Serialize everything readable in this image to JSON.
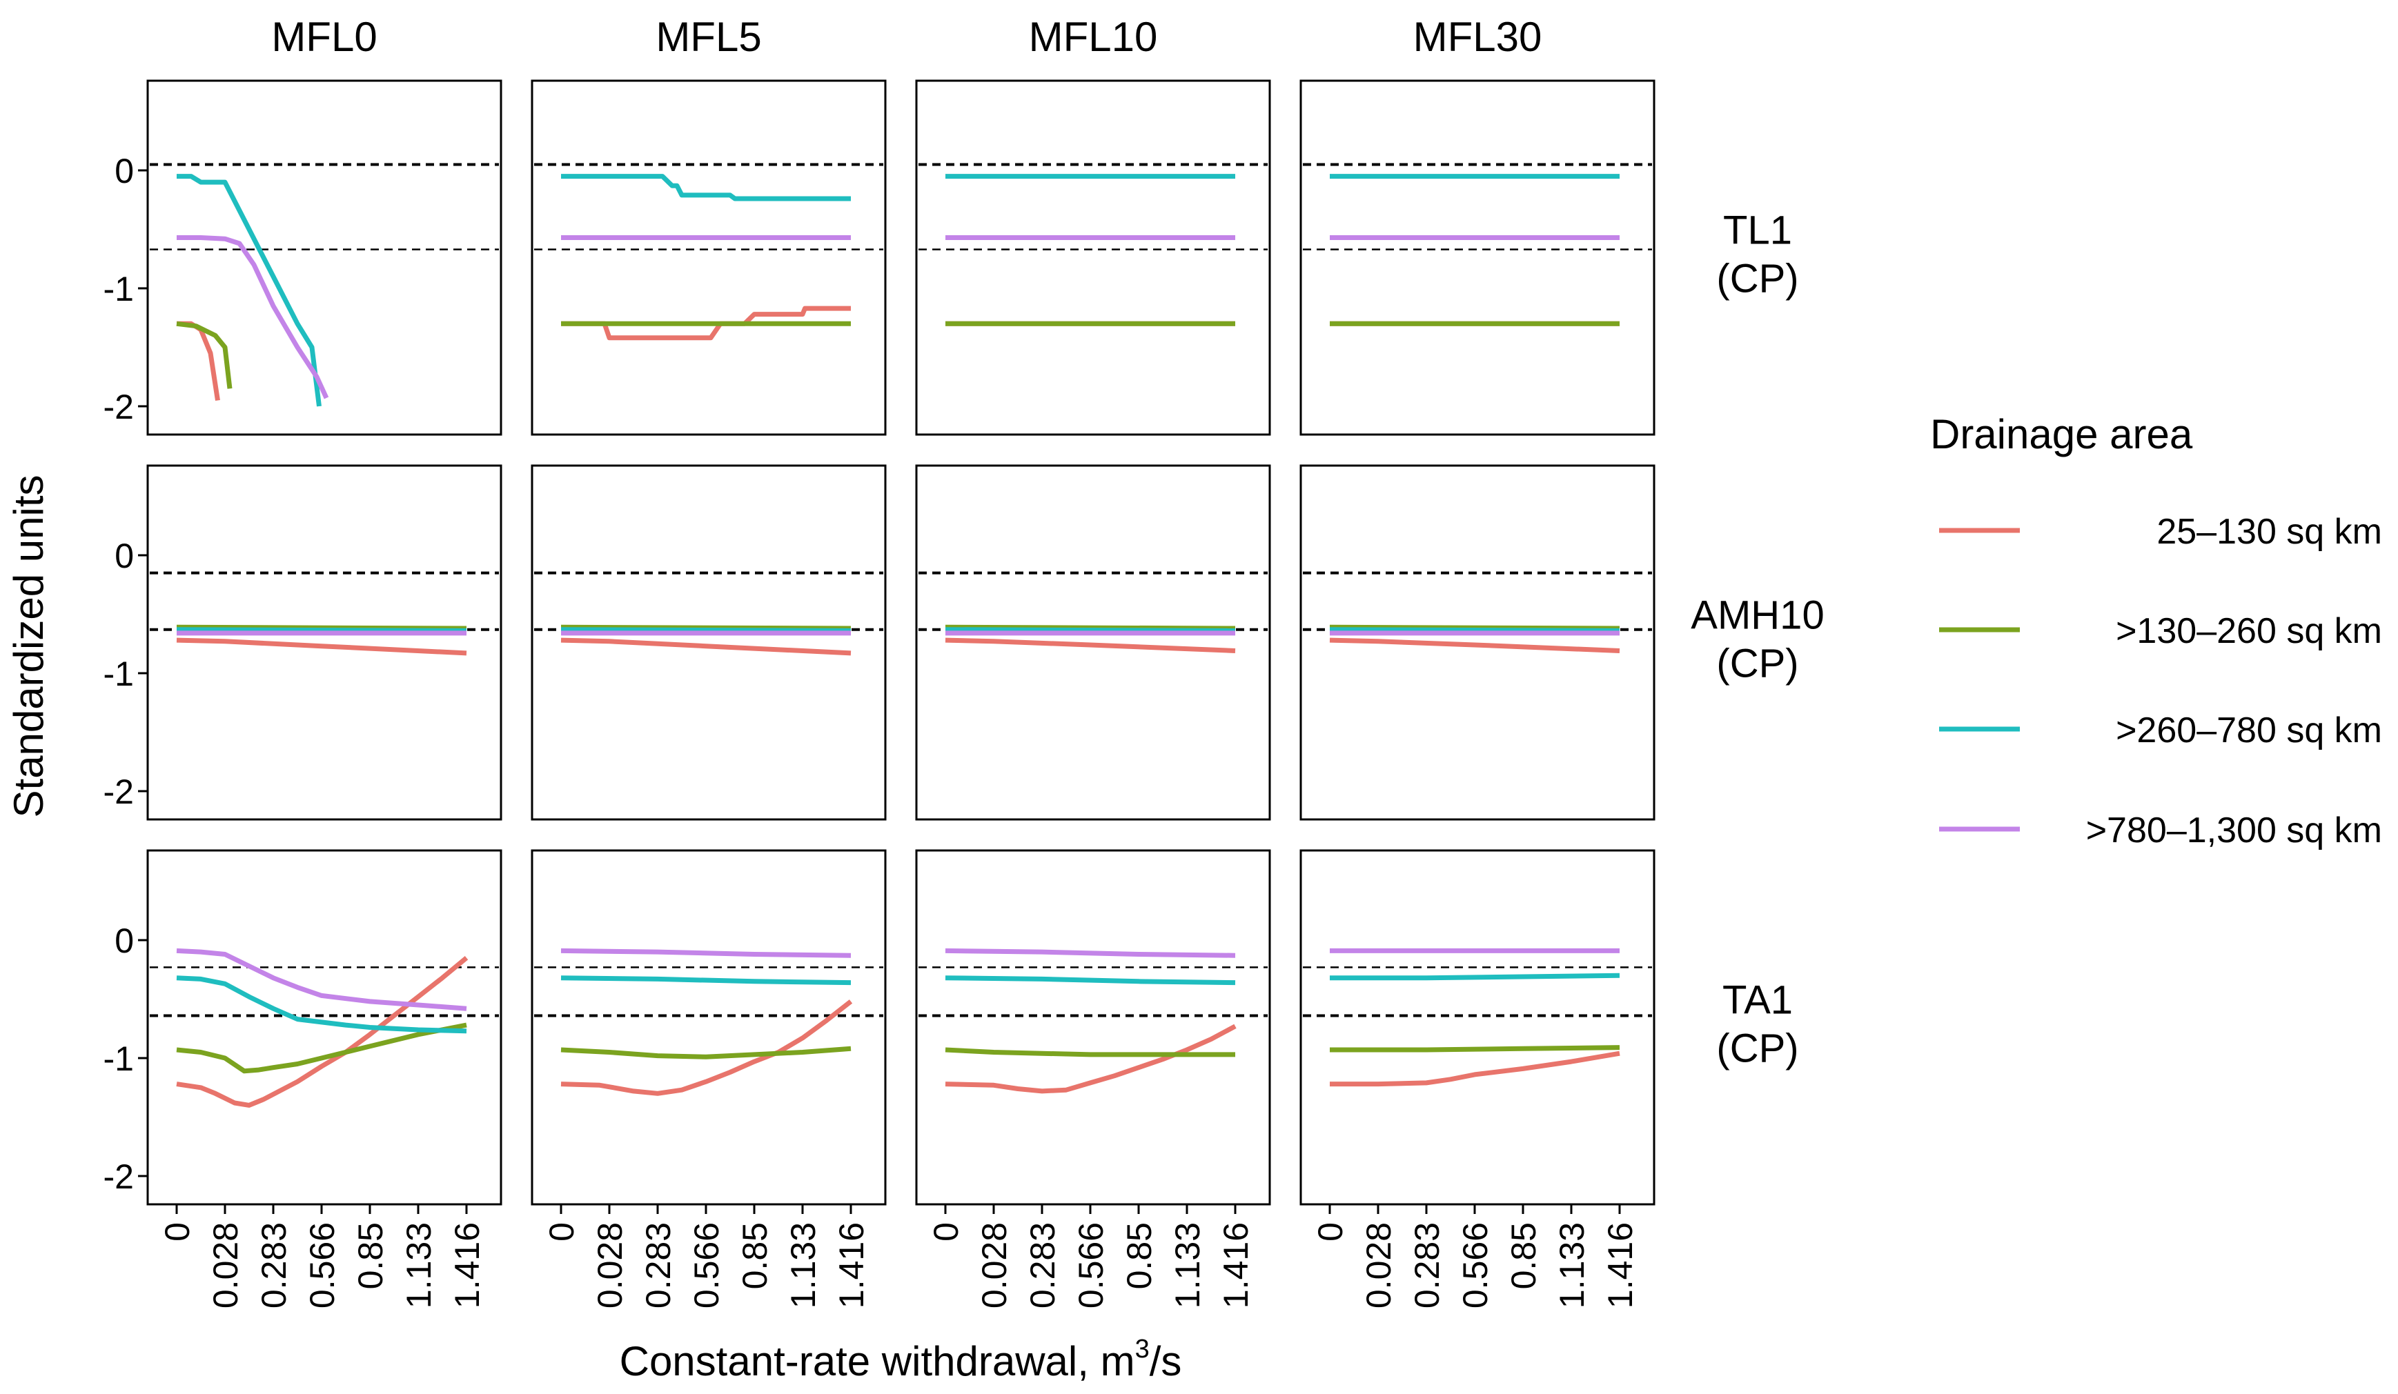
{
  "chart_data": {
    "type": "line",
    "layout": "facet-grid",
    "xlabel": "Constant-rate withdrawal, m",
    "xlabel_superscript": "3",
    "xlabel_suffix": "/s",
    "ylabel": "Standardized units",
    "x_ticks": [
      "0",
      "0.028",
      "0.283",
      "0.566",
      "0.85",
      "1.133",
      "1.416"
    ],
    "y_ticks": [
      0,
      -1,
      -2
    ],
    "y_tick_labels": [
      "0",
      "-1",
      "-2"
    ],
    "ylim": [
      -2.25,
      0.75
    ],
    "columns": [
      "MFL0",
      "MFL5",
      "MFL10",
      "MFL30"
    ],
    "rows": [
      {
        "label": [
          "TL1",
          "(CP)"
        ],
        "ref_lines": [
          0.05,
          -0.67
        ],
        "ref_widths": [
          4,
          2.5
        ]
      },
      {
        "label": [
          "AMH10",
          "(CP)"
        ],
        "ref_lines": [
          -0.15,
          -0.63
        ],
        "ref_widths": [
          4,
          4
        ]
      },
      {
        "label": [
          "TA1",
          "(CP)"
        ],
        "ref_lines": [
          -0.23,
          -0.64
        ],
        "ref_widths": [
          2.5,
          4
        ]
      }
    ],
    "legend": {
      "title": "Drainage area",
      "position": "right",
      "entries": [
        {
          "key": "s1",
          "label": "25–130 sq km",
          "color": "#E8746B"
        },
        {
          "key": "s2",
          "label": ">130–260 sq km",
          "color": "#7BA31F"
        },
        {
          "key": "s3",
          "label": ">260–780 sq km",
          "color": "#1FBDBF"
        },
        {
          "key": "s4",
          "label": ">780–1,300 sq km",
          "color": "#C384E8"
        }
      ]
    },
    "panels": [
      {
        "row": 0,
        "col": 0,
        "series": {
          "s1": [
            [
              0,
              -1.3
            ],
            [
              0.3,
              -1.3
            ],
            [
              0.5,
              -1.35
            ],
            [
              0.7,
              -1.55
            ],
            [
              0.85,
              -1.95
            ]
          ],
          "s2": [
            [
              0,
              -1.3
            ],
            [
              0.4,
              -1.32
            ],
            [
              0.8,
              -1.4
            ],
            [
              1.0,
              -1.5
            ],
            [
              1.1,
              -1.85
            ]
          ],
          "s3": [
            [
              0,
              -0.05
            ],
            [
              0.3,
              -0.05
            ],
            [
              0.5,
              -0.1
            ],
            [
              1.0,
              -0.1
            ],
            [
              1.5,
              -0.5
            ],
            [
              2.0,
              -0.9
            ],
            [
              2.5,
              -1.3
            ],
            [
              2.8,
              -1.5
            ],
            [
              2.95,
              -2.0
            ]
          ],
          "s4": [
            [
              0,
              -0.57
            ],
            [
              0.5,
              -0.57
            ],
            [
              1.0,
              -0.58
            ],
            [
              1.3,
              -0.62
            ],
            [
              1.6,
              -0.8
            ],
            [
              2.0,
              -1.15
            ],
            [
              2.5,
              -1.5
            ],
            [
              2.9,
              -1.75
            ],
            [
              3.1,
              -1.93
            ]
          ]
        }
      },
      {
        "row": 0,
        "col": 1,
        "series": {
          "s1": [
            [
              0,
              -1.3
            ],
            [
              0.9,
              -1.3
            ],
            [
              1.0,
              -1.42
            ],
            [
              3.1,
              -1.42
            ],
            [
              3.3,
              -1.3
            ],
            [
              3.8,
              -1.3
            ],
            [
              4.0,
              -1.22
            ],
            [
              5.0,
              -1.22
            ],
            [
              5.05,
              -1.17
            ],
            [
              6.0,
              -1.17
            ]
          ],
          "s2": [
            [
              0,
              -1.3
            ],
            [
              6.0,
              -1.3
            ]
          ],
          "s3": [
            [
              0,
              -0.05
            ],
            [
              2.1,
              -0.05
            ],
            [
              2.3,
              -0.13
            ],
            [
              2.4,
              -0.13
            ],
            [
              2.5,
              -0.21
            ],
            [
              3.5,
              -0.21
            ],
            [
              3.6,
              -0.24
            ],
            [
              6.0,
              -0.24
            ]
          ],
          "s4": [
            [
              0,
              -0.57
            ],
            [
              6.0,
              -0.57
            ]
          ]
        }
      },
      {
        "row": 0,
        "col": 2,
        "series": {
          "s1": [
            [
              0,
              -1.3
            ],
            [
              6.0,
              -1.3
            ]
          ],
          "s2": [
            [
              0,
              -1.3
            ],
            [
              6.0,
              -1.3
            ]
          ],
          "s3": [
            [
              0,
              -0.05
            ],
            [
              6.0,
              -0.05
            ]
          ],
          "s4": [
            [
              0,
              -0.57
            ],
            [
              6.0,
              -0.57
            ]
          ]
        }
      },
      {
        "row": 0,
        "col": 3,
        "series": {
          "s1": [
            [
              0,
              -1.3
            ],
            [
              6.0,
              -1.3
            ]
          ],
          "s2": [
            [
              0,
              -1.3
            ],
            [
              6.0,
              -1.3
            ]
          ],
          "s3": [
            [
              0,
              -0.05
            ],
            [
              6.0,
              -0.05
            ]
          ],
          "s4": [
            [
              0,
              -0.57
            ],
            [
              6.0,
              -0.57
            ]
          ]
        }
      },
      {
        "row": 1,
        "col": 0,
        "series": {
          "s1": [
            [
              0,
              -0.72
            ],
            [
              1.0,
              -0.73
            ],
            [
              3.0,
              -0.77
            ],
            [
              6.0,
              -0.83
            ]
          ],
          "s2": [
            [
              0,
              -0.61
            ],
            [
              6.0,
              -0.62
            ]
          ],
          "s3": [
            [
              0,
              -0.63
            ],
            [
              6.0,
              -0.64
            ]
          ],
          "s4": [
            [
              0,
              -0.66
            ],
            [
              6.0,
              -0.66
            ]
          ]
        }
      },
      {
        "row": 1,
        "col": 1,
        "series": {
          "s1": [
            [
              0,
              -0.72
            ],
            [
              1.0,
              -0.73
            ],
            [
              3.0,
              -0.77
            ],
            [
              6.0,
              -0.83
            ]
          ],
          "s2": [
            [
              0,
              -0.61
            ],
            [
              6.0,
              -0.62
            ]
          ],
          "s3": [
            [
              0,
              -0.63
            ],
            [
              6.0,
              -0.64
            ]
          ],
          "s4": [
            [
              0,
              -0.66
            ],
            [
              6.0,
              -0.66
            ]
          ]
        }
      },
      {
        "row": 1,
        "col": 2,
        "series": {
          "s1": [
            [
              0,
              -0.72
            ],
            [
              1.0,
              -0.73
            ],
            [
              3.0,
              -0.76
            ],
            [
              6.0,
              -0.81
            ]
          ],
          "s2": [
            [
              0,
              -0.61
            ],
            [
              6.0,
              -0.62
            ]
          ],
          "s3": [
            [
              0,
              -0.63
            ],
            [
              6.0,
              -0.64
            ]
          ],
          "s4": [
            [
              0,
              -0.66
            ],
            [
              6.0,
              -0.66
            ]
          ]
        }
      },
      {
        "row": 1,
        "col": 3,
        "series": {
          "s1": [
            [
              0,
              -0.72
            ],
            [
              1.0,
              -0.73
            ],
            [
              3.0,
              -0.76
            ],
            [
              6.0,
              -0.81
            ]
          ],
          "s2": [
            [
              0,
              -0.61
            ],
            [
              6.0,
              -0.62
            ]
          ],
          "s3": [
            [
              0,
              -0.63
            ],
            [
              6.0,
              -0.64
            ]
          ],
          "s4": [
            [
              0,
              -0.66
            ],
            [
              6.0,
              -0.66
            ]
          ]
        }
      },
      {
        "row": 2,
        "col": 0,
        "series": {
          "s1": [
            [
              0,
              -1.22
            ],
            [
              0.5,
              -1.25
            ],
            [
              0.8,
              -1.3
            ],
            [
              1.2,
              -1.38
            ],
            [
              1.5,
              -1.4
            ],
            [
              1.8,
              -1.35
            ],
            [
              2.5,
              -1.2
            ],
            [
              3.0,
              -1.07
            ],
            [
              3.5,
              -0.95
            ],
            [
              4.0,
              -0.8
            ],
            [
              4.5,
              -0.64
            ],
            [
              5.0,
              -0.48
            ],
            [
              5.5,
              -0.32
            ],
            [
              6.0,
              -0.15
            ]
          ],
          "s2": [
            [
              0,
              -0.93
            ],
            [
              0.5,
              -0.95
            ],
            [
              1.0,
              -1.0
            ],
            [
              1.4,
              -1.11
            ],
            [
              1.7,
              -1.1
            ],
            [
              2.0,
              -1.08
            ],
            [
              2.5,
              -1.05
            ],
            [
              3.0,
              -1.0
            ],
            [
              4.0,
              -0.9
            ],
            [
              5.0,
              -0.8
            ],
            [
              6.0,
              -0.72
            ]
          ],
          "s3": [
            [
              0,
              -0.32
            ],
            [
              0.5,
              -0.33
            ],
            [
              1.0,
              -0.37
            ],
            [
              1.5,
              -0.48
            ],
            [
              2.0,
              -0.58
            ],
            [
              2.5,
              -0.67
            ],
            [
              3.5,
              -0.72
            ],
            [
              4.0,
              -0.74
            ],
            [
              5.0,
              -0.76
            ],
            [
              6.0,
              -0.77
            ]
          ],
          "s4": [
            [
              0,
              -0.09
            ],
            [
              0.5,
              -0.1
            ],
            [
              1.0,
              -0.12
            ],
            [
              1.5,
              -0.22
            ],
            [
              2.0,
              -0.32
            ],
            [
              2.5,
              -0.4
            ],
            [
              3.0,
              -0.47
            ],
            [
              4.0,
              -0.52
            ],
            [
              5.0,
              -0.55
            ],
            [
              6.0,
              -0.58
            ]
          ]
        }
      },
      {
        "row": 2,
        "col": 1,
        "series": {
          "s1": [
            [
              0,
              -1.22
            ],
            [
              0.8,
              -1.23
            ],
            [
              1.5,
              -1.28
            ],
            [
              2.0,
              -1.3
            ],
            [
              2.5,
              -1.27
            ],
            [
              3.0,
              -1.2
            ],
            [
              3.5,
              -1.12
            ],
            [
              4.0,
              -1.03
            ],
            [
              4.5,
              -0.95
            ],
            [
              5.0,
              -0.83
            ],
            [
              5.5,
              -0.68
            ],
            [
              6.0,
              -0.52
            ]
          ],
          "s2": [
            [
              0,
              -0.93
            ],
            [
              1.0,
              -0.95
            ],
            [
              2.0,
              -0.98
            ],
            [
              3.0,
              -0.99
            ],
            [
              4.0,
              -0.97
            ],
            [
              5.0,
              -0.95
            ],
            [
              6.0,
              -0.92
            ]
          ],
          "s3": [
            [
              0,
              -0.32
            ],
            [
              2.0,
              -0.33
            ],
            [
              4.0,
              -0.35
            ],
            [
              6.0,
              -0.36
            ]
          ],
          "s4": [
            [
              0,
              -0.09
            ],
            [
              2.0,
              -0.1
            ],
            [
              4.0,
              -0.12
            ],
            [
              6.0,
              -0.13
            ]
          ]
        }
      },
      {
        "row": 2,
        "col": 2,
        "series": {
          "s1": [
            [
              0,
              -1.22
            ],
            [
              1.0,
              -1.23
            ],
            [
              1.5,
              -1.26
            ],
            [
              2.0,
              -1.28
            ],
            [
              2.5,
              -1.27
            ],
            [
              3.0,
              -1.21
            ],
            [
              3.5,
              -1.15
            ],
            [
              4.0,
              -1.08
            ],
            [
              4.5,
              -1.01
            ],
            [
              5.0,
              -0.93
            ],
            [
              5.5,
              -0.84
            ],
            [
              6.0,
              -0.73
            ]
          ],
          "s2": [
            [
              0,
              -0.93
            ],
            [
              1.0,
              -0.95
            ],
            [
              2.0,
              -0.96
            ],
            [
              3.0,
              -0.97
            ],
            [
              4.0,
              -0.97
            ],
            [
              5.0,
              -0.97
            ],
            [
              6.0,
              -0.97
            ]
          ],
          "s3": [
            [
              0,
              -0.32
            ],
            [
              2.0,
              -0.33
            ],
            [
              4.0,
              -0.35
            ],
            [
              6.0,
              -0.36
            ]
          ],
          "s4": [
            [
              0,
              -0.09
            ],
            [
              2.0,
              -0.1
            ],
            [
              4.0,
              -0.12
            ],
            [
              6.0,
              -0.13
            ]
          ]
        }
      },
      {
        "row": 2,
        "col": 3,
        "series": {
          "s1": [
            [
              0,
              -1.22
            ],
            [
              1.0,
              -1.22
            ],
            [
              2.0,
              -1.21
            ],
            [
              2.5,
              -1.18
            ],
            [
              3.0,
              -1.14
            ],
            [
              4.0,
              -1.09
            ],
            [
              5.0,
              -1.03
            ],
            [
              6.0,
              -0.96
            ]
          ],
          "s2": [
            [
              0,
              -0.93
            ],
            [
              2.0,
              -0.93
            ],
            [
              4.0,
              -0.92
            ],
            [
              6.0,
              -0.91
            ]
          ],
          "s3": [
            [
              0,
              -0.32
            ],
            [
              2.0,
              -0.32
            ],
            [
              4.0,
              -0.31
            ],
            [
              6.0,
              -0.3
            ]
          ],
          "s4": [
            [
              0,
              -0.09
            ],
            [
              2.0,
              -0.09
            ],
            [
              4.0,
              -0.09
            ],
            [
              6.0,
              -0.09
            ]
          ]
        }
      }
    ]
  }
}
